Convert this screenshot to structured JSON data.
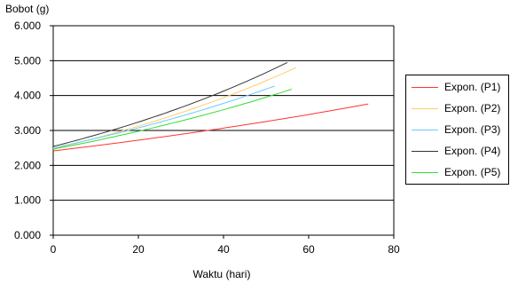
{
  "chart_data": {
    "type": "line",
    "xlabel": "Waktu (hari)",
    "ylabel": "Bobot (g)",
    "xlim": [
      0,
      80
    ],
    "ylim": [
      0,
      6
    ],
    "xticks": [
      "0",
      "20",
      "40",
      "60",
      "80"
    ],
    "yticks": [
      "0.000",
      "1.000",
      "2.000",
      "3.000",
      "4.000",
      "5.000",
      "6.000"
    ],
    "grid": "horizontal",
    "legend_position": "right",
    "series": [
      {
        "name": "Expon. (P1)",
        "color": "#ff3333",
        "x": [
          0,
          20,
          40,
          60,
          74
        ],
        "y": [
          2.42,
          2.72,
          3.06,
          3.44,
          3.78
        ]
      },
      {
        "name": "Expon. (P2)",
        "color": "#ffcc66",
        "x": [
          0,
          15,
          30,
          45,
          57
        ],
        "y": [
          2.45,
          2.95,
          3.55,
          4.25,
          4.7
        ]
      },
      {
        "name": "Expon. (P3)",
        "color": "#66ccff",
        "x": [
          0,
          13,
          26,
          39,
          52
        ],
        "y": [
          2.48,
          2.86,
          3.3,
          3.8,
          4.2
        ]
      },
      {
        "name": "Expon. (P4)",
        "color": "#333333",
        "x": [
          0,
          14,
          28,
          42,
          55
        ],
        "y": [
          2.5,
          3.04,
          3.66,
          4.2,
          4.9
        ]
      },
      {
        "name": "Expon. (P5)",
        "color": "#33dd33",
        "x": [
          0,
          14,
          28,
          42,
          56
        ],
        "y": [
          2.4,
          2.85,
          3.3,
          3.7,
          4.08
        ]
      }
    ]
  }
}
